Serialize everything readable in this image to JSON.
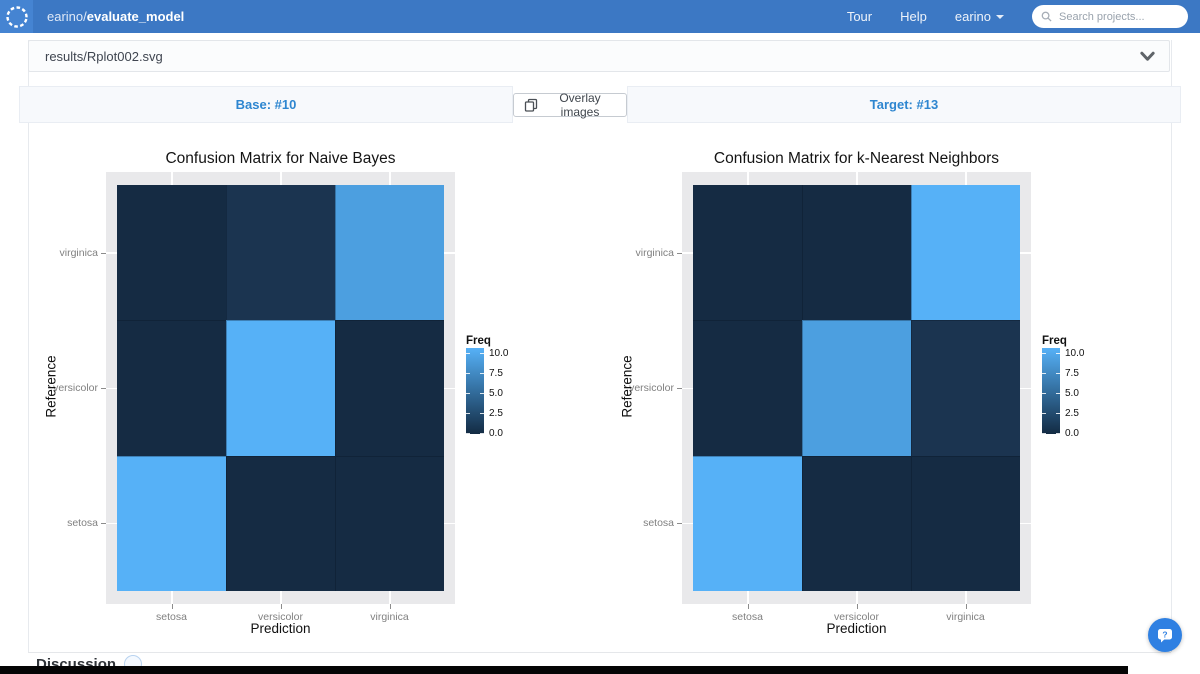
{
  "navbar": {
    "brand_owner": "earino/",
    "brand_repo": "evaluate_model",
    "links": [
      "Tour",
      "Help"
    ],
    "user": "earino",
    "search_placeholder": "Search projects..."
  },
  "file_header": {
    "filename": "results/Rplot002.svg"
  },
  "compare_bar": {
    "base_label": "Base: #10",
    "overlay_button": "Overlay images",
    "target_label": "Target: #13"
  },
  "discussion": {
    "title": "Discussion"
  },
  "colors": {
    "navbar_bg": "#3c78c4",
    "logo_tile_bg": "#4584d2",
    "compare_accent": "#2e86d0",
    "panel_bg": "#e9e9eb",
    "chat_fab": "#2f80e2"
  },
  "chart_data": [
    {
      "type": "heatmap",
      "title": "Confusion Matrix for Naive Bayes",
      "xlabel": "Prediction",
      "ylabel": "Reference",
      "x_categories": [
        "setosa",
        "versicolor",
        "virginica"
      ],
      "y_categories_top_to_bottom": [
        "virginica",
        "versicolor",
        "setosa"
      ],
      "rows": [
        {
          "reference": "virginica",
          "values": [
            0,
            2,
            8
          ]
        },
        {
          "reference": "versicolor",
          "values": [
            0,
            10,
            0
          ]
        },
        {
          "reference": "setosa",
          "values": [
            10,
            0,
            0
          ]
        }
      ],
      "legend": {
        "title": "Freq",
        "ticks": [
          10.0,
          7.5,
          5.0,
          2.5,
          0.0
        ],
        "min": 0,
        "max": 10
      },
      "value_colors": {
        "0": "#152b43",
        "2": "#1b3450",
        "8": "#4c9fe0",
        "10": "#56b1f7"
      },
      "low_color": "#132b43",
      "high_color": "#56b1f7",
      "grid": true,
      "legend_position": "right"
    },
    {
      "type": "heatmap",
      "title": "Confusion Matrix for k-Nearest Neighbors",
      "xlabel": "Prediction",
      "ylabel": "Reference",
      "x_categories": [
        "setosa",
        "versicolor",
        "virginica"
      ],
      "y_categories_top_to_bottom": [
        "virginica",
        "versicolor",
        "setosa"
      ],
      "rows": [
        {
          "reference": "virginica",
          "values": [
            0,
            0,
            10
          ]
        },
        {
          "reference": "versicolor",
          "values": [
            0,
            8,
            2
          ]
        },
        {
          "reference": "setosa",
          "values": [
            10,
            0,
            0
          ]
        }
      ],
      "legend": {
        "title": "Freq",
        "ticks": [
          10.0,
          7.5,
          5.0,
          2.5,
          0.0
        ],
        "min": 0,
        "max": 10
      },
      "value_colors": {
        "0": "#152b43",
        "2": "#1b3450",
        "8": "#4c9fe0",
        "10": "#56b1f7"
      },
      "low_color": "#132b43",
      "high_color": "#56b1f7",
      "grid": true,
      "legend_position": "right"
    }
  ]
}
